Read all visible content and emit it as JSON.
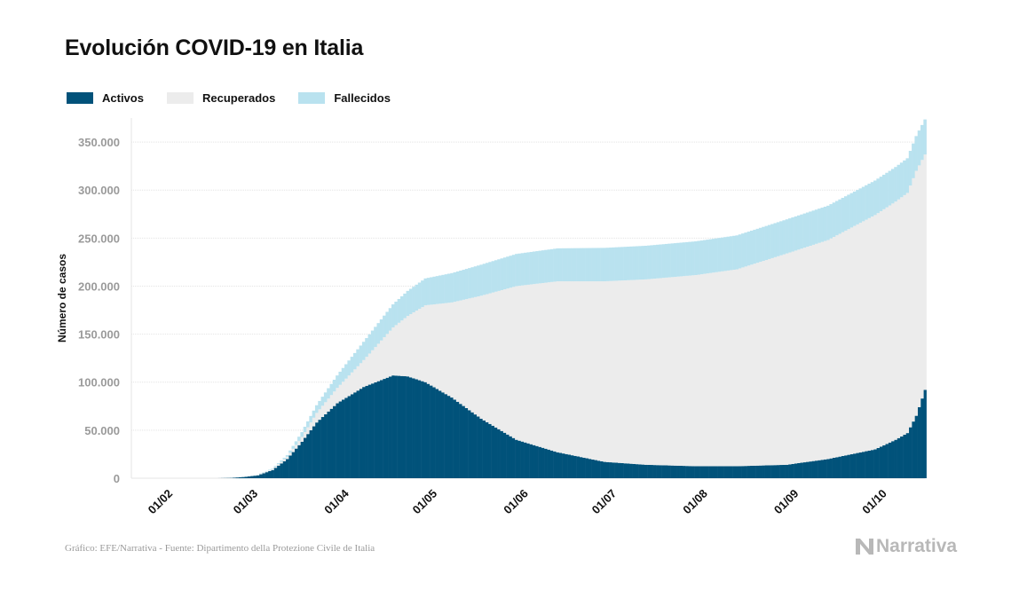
{
  "title": "Evolución COVID-19 en Italia",
  "legend": [
    {
      "label": "Activos",
      "color": "#01527a"
    },
    {
      "label": "Recuperados",
      "color": "#ececec"
    },
    {
      "label": "Fallecidos",
      "color": "#b9e2ef"
    }
  ],
  "footer": {
    "source": "Gráfico: EFE/Narrativa - Fuente: Dipartimento della Protezione Civile de Italia",
    "logo_text": "Narrativa"
  },
  "chart_data": {
    "type": "area",
    "stacked": true,
    "ylabel": "Número de casos",
    "ylim": [
      0,
      375000
    ],
    "yticks": [
      0,
      50000,
      100000,
      150000,
      200000,
      250000,
      300000,
      350000
    ],
    "ytick_labels": [
      "0",
      "50.000",
      "100.000",
      "150.000",
      "200.000",
      "250.000",
      "300.000",
      "350.000"
    ],
    "x_ticks": [
      "2020-02-01",
      "2020-03-01",
      "2020-04-01",
      "2020-05-01",
      "2020-06-01",
      "2020-07-01",
      "2020-08-01",
      "2020-09-01",
      "2020-10-01"
    ],
    "x_tick_labels": [
      "01/02",
      "01/03",
      "01/04",
      "01/05",
      "01/06",
      "01/07",
      "01/08",
      "01/09",
      "01/10"
    ],
    "x_range": [
      "2020-01-22",
      "2020-10-18"
    ],
    "grid": true,
    "legend_position": "top-left",
    "series_points": {
      "dates": [
        "2020-02-20",
        "2020-02-25",
        "2020-03-01",
        "2020-03-05",
        "2020-03-10",
        "2020-03-15",
        "2020-03-20",
        "2020-03-25",
        "2020-04-01",
        "2020-04-10",
        "2020-04-20",
        "2020-04-25",
        "2020-05-01",
        "2020-05-10",
        "2020-05-20",
        "2020-06-01",
        "2020-06-15",
        "2020-07-01",
        "2020-07-15",
        "2020-08-01",
        "2020-08-15",
        "2020-09-01",
        "2020-09-15",
        "2020-10-01",
        "2020-10-08",
        "2020-10-12",
        "2020-10-15",
        "2020-10-18"
      ],
      "series": [
        {
          "name": "Activos",
          "values": [
            0,
            300,
            1500,
            3000,
            8500,
            20000,
            38000,
            58000,
            78000,
            95000,
            107000,
            106000,
            100000,
            84000,
            62000,
            40000,
            27000,
            17000,
            14000,
            12500,
            12500,
            14000,
            20000,
            30000,
            40000,
            47000,
            65000,
            92000
          ]
        },
        {
          "name": "Recuperados",
          "values": [
            0,
            0,
            100,
            500,
            1000,
            2300,
            5000,
            10000,
            16000,
            28000,
            50000,
            63000,
            80000,
            99000,
            128000,
            160000,
            178000,
            188000,
            193000,
            199000,
            205000,
            220000,
            228000,
            244000,
            248000,
            250000,
            255000,
            245000
          ]
        },
        {
          "name": "Fallecidos",
          "values": [
            0,
            10,
            40,
            150,
            600,
            1800,
            5000,
            8000,
            13000,
            19000,
            24000,
            26000,
            28000,
            30500,
            32300,
            33500,
            34300,
            34800,
            35000,
            35100,
            35300,
            35500,
            35700,
            35900,
            36000,
            36100,
            36200,
            36500
          ]
        }
      ]
    }
  }
}
